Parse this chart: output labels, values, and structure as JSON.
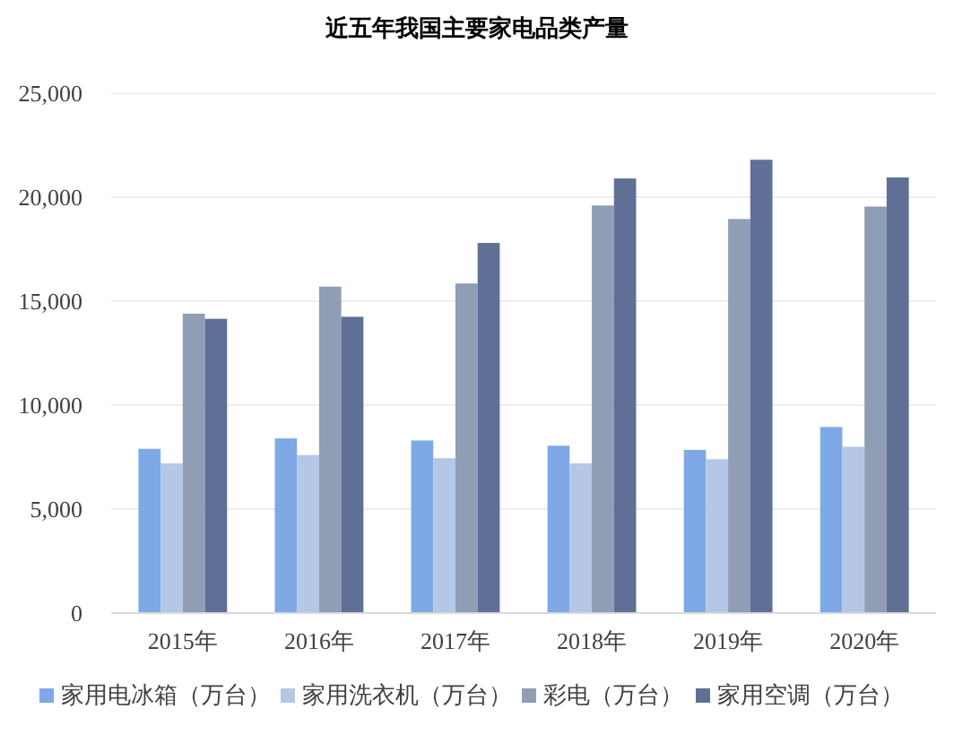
{
  "chart_data": {
    "type": "bar",
    "title": "近五年我国主要家电品类产量",
    "categories": [
      "2015年",
      "2016年",
      "2017年",
      "2018年",
      "2019年",
      "2020年"
    ],
    "series": [
      {
        "name": "家用电冰箱（万台）",
        "color": "#7ea9e6",
        "values": [
          7900,
          8400,
          8300,
          8050,
          7850,
          8950
        ]
      },
      {
        "name": "家用洗衣机（万台）",
        "color": "#b4c7e7",
        "values": [
          7200,
          7600,
          7450,
          7200,
          7400,
          8000
        ]
      },
      {
        "name": "彩电（万台）",
        "color": "#8f9db5",
        "values": [
          14400,
          15700,
          15850,
          19600,
          18950,
          19550
        ]
      },
      {
        "name": "家用空调（万台）",
        "color": "#5f6f96",
        "values": [
          14150,
          14250,
          17800,
          20900,
          21800,
          20950
        ]
      }
    ],
    "ylim": [
      0,
      25000
    ],
    "yticks": [
      {
        "value": 0,
        "label": "0"
      },
      {
        "value": 5000,
        "label": "5,000"
      },
      {
        "value": 10000,
        "label": "10,000"
      },
      {
        "value": 15000,
        "label": "15,000"
      },
      {
        "value": 20000,
        "label": "20,000"
      },
      {
        "value": 25000,
        "label": "25,000"
      }
    ],
    "grid": "y",
    "legend": "bottom"
  }
}
